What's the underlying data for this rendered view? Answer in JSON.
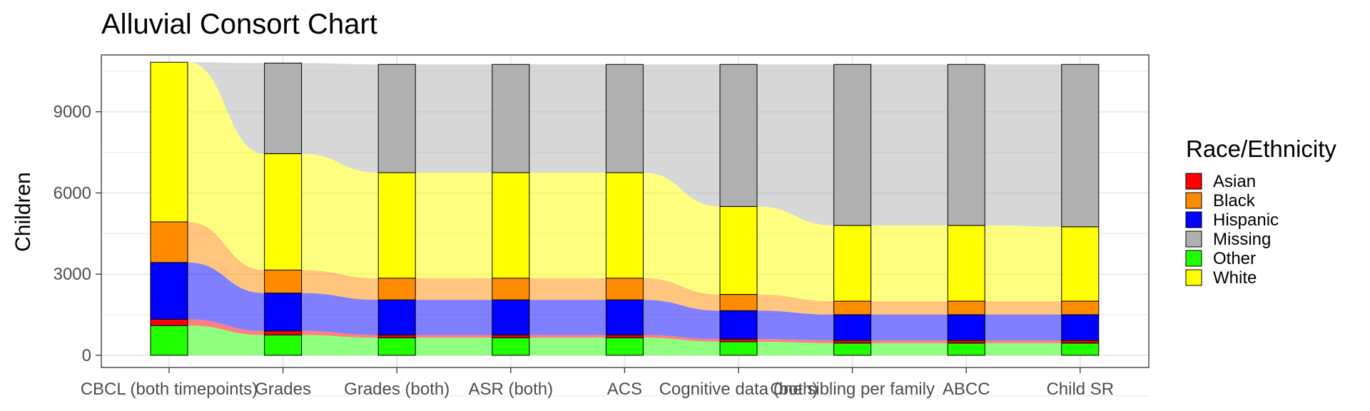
{
  "chart_data": {
    "type": "alluvial",
    "title": "Alluvial Consort Chart",
    "xlabel": "",
    "ylabel": "Children",
    "ylim": [
      -450,
      11100
    ],
    "yticks": [
      0,
      3000,
      6000,
      9000
    ],
    "grid": true,
    "legend": {
      "title": "Race/Ethnicity",
      "position": "right",
      "entries": [
        "Asian",
        "Black",
        "Hispanic",
        "Missing",
        "Other",
        "White"
      ]
    },
    "colors": {
      "Asian": "#ff0000",
      "Black": "#ff8c00",
      "Hispanic": "#0000ff",
      "Missing": "#b0b0b0",
      "Other": "#20ff00",
      "White": "#ffff00"
    },
    "categories": [
      "CBCL (both timepoints)",
      "Grades",
      "Grades (both)",
      "ASR (both)",
      "ACS",
      "Cognitive data (both)",
      "One sibling per family",
      "ABCC",
      "Child SR"
    ],
    "stack_order": [
      "Other",
      "Asian",
      "Hispanic",
      "Black",
      "White",
      "Missing"
    ],
    "series": [
      {
        "name": "Other",
        "values": [
          1100,
          750,
          650,
          650,
          650,
          500,
          450,
          450,
          450
        ]
      },
      {
        "name": "Asian",
        "values": [
          230,
          150,
          100,
          100,
          100,
          100,
          100,
          100,
          100
        ]
      },
      {
        "name": "Hispanic",
        "values": [
          2100,
          1400,
          1300,
          1300,
          1300,
          1050,
          950,
          950,
          950
        ]
      },
      {
        "name": "Black",
        "values": [
          1500,
          850,
          800,
          800,
          800,
          600,
          500,
          500,
          500
        ]
      },
      {
        "name": "White",
        "values": [
          5900,
          4300,
          3900,
          3900,
          3900,
          3250,
          2800,
          2800,
          2750
        ]
      },
      {
        "name": "Missing",
        "values": [
          0,
          3350,
          4000,
          4000,
          4000,
          5250,
          5950,
          5950,
          6000
        ]
      }
    ]
  }
}
